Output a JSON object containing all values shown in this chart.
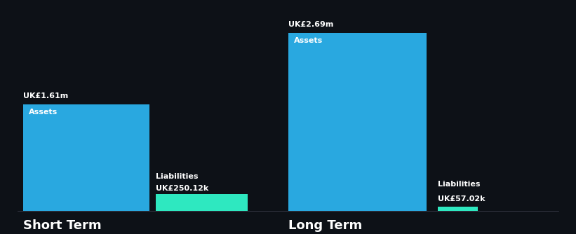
{
  "background_color": "#0d1117",
  "short_term": {
    "assets_value": 1610000,
    "liabilities_value": 250120,
    "assets_label": "Assets",
    "liabilities_label": "Liabilities",
    "assets_display": "UK£1.61m",
    "liabilities_display": "UK£250.12k",
    "title": "Short Term"
  },
  "long_term": {
    "assets_value": 2690000,
    "liabilities_value": 57020,
    "assets_label": "Assets",
    "liabilities_label": "Liabilities",
    "assets_display": "UK£2.69m",
    "liabilities_display": "UK£57.02k",
    "title": "Long Term"
  },
  "assets_color": "#29a8e0",
  "liabilities_color": "#2ee8c0",
  "text_color": "#ffffff",
  "label_fontsize": 8,
  "title_fontsize": 13,
  "value_label_fontsize": 8
}
